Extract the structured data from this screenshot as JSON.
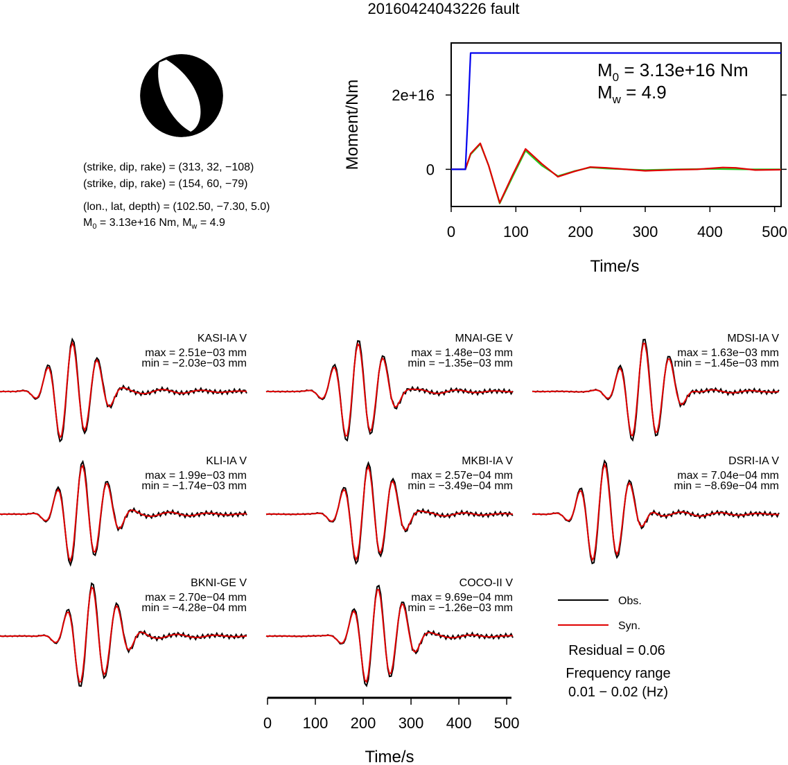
{
  "figure": {
    "title": "20160424043226 fault",
    "mechanism_line1": "(strike, dip, rake) = (313, 32, −108)",
    "mechanism_line2": "(strike, dip, rake) = (154, 60, −79)",
    "location_line": "(lon., lat, depth) = (102.50, −7.30, 5.0)",
    "moment_line_main": "M",
    "moment_line_sub": "0",
    "moment_line_rest": " = 3.13e+16 Nm, M",
    "moment_line_sub2": "w",
    "moment_line_end": " = 4.9"
  },
  "moment_panel": {
    "mo_main": "M",
    "mo_sub": "0",
    "mo_rest": " = 3.13e+16 Nm",
    "mw_main": "M",
    "mw_sub": "w",
    "mw_rest": " = 4.9"
  },
  "legend": {
    "obs_label": "Obs.",
    "syn_label": "Syn.",
    "residual": "Residual = 0.06",
    "freq_label": "Frequency range",
    "freq_value": "0.01 − 0.02 (Hz)"
  },
  "colors": {
    "observed": "#000000",
    "synthetic": "#e00000",
    "moment_rate_green": "#22cc22",
    "cumulative_moment": "#0000ee"
  },
  "chart_data": [
    {
      "type": "line",
      "ylabel": "Moment/Nm",
      "xlabel": "Time/s",
      "xlim": [
        0,
        510
      ],
      "x_ticks": [
        0,
        100,
        200,
        300,
        400,
        500
      ],
      "y_ticks": [
        {
          "value": 0,
          "label": "0"
        },
        {
          "value": 2e+16,
          "label": "2e+16"
        }
      ],
      "ylim": [
        -1e+16,
        3.4e+16
      ],
      "series": [
        {
          "color": "blue",
          "x": [
            0,
            22,
            26,
            30,
            510
          ],
          "y": [
            0,
            0,
            1.5e+16,
            3.13e+16,
            3.13e+16
          ]
        },
        {
          "color": "green",
          "x": [
            0,
            22,
            30,
            45,
            58,
            75,
            95,
            115,
            140,
            165,
            190,
            215,
            240,
            300,
            350,
            400,
            450,
            510
          ],
          "y": [
            0,
            0,
            4000000000000000.0,
            6800000000000000.0,
            1000000000000000.0,
            -9200000000000000.0,
            -2000000000000000.0,
            5000000000000000.0,
            1000000000000000.0,
            -1800000000000000.0,
            -500000000000000.0,
            500000000000000.0,
            200000000000000.0,
            -200000000000000.0,
            0.0,
            100000000000000.0,
            0.0,
            0.0
          ]
        },
        {
          "color": "red",
          "x": [
            0,
            22,
            30,
            45,
            58,
            75,
            95,
            115,
            140,
            165,
            190,
            215,
            240,
            300,
            350,
            380,
            420,
            440,
            470,
            510
          ],
          "y": [
            0,
            0,
            4200000000000000.0,
            7000000000000000.0,
            1000000000000000.0,
            -9000000000000000.0,
            -1500000000000000.0,
            5500000000000000.0,
            1500000000000000.0,
            -2000000000000000.0,
            -600000000000000.0,
            600000000000000.0,
            400000000000000.0,
            -400000000000000.0,
            -100000000000000.0,
            0.0,
            500000000000000.0,
            400000000000000.0,
            -200000000000000.0,
            -100000000000000.0
          ]
        }
      ]
    },
    {
      "type": "line",
      "traces": [
        {
          "station": "KASI-IA V",
          "max": "max = 2.51e−03 mm",
          "min": "min = −2.03e−03 mm"
        },
        {
          "station": "MNAI-GE V",
          "max": "max = 1.48e−03 mm",
          "min": "min = −1.35e−03 mm"
        },
        {
          "station": "MDSI-IA V",
          "max": "max = 1.63e−03 mm",
          "min": "min = −1.45e−03 mm"
        },
        {
          "station": "KLI-IA V",
          "max": "max = 1.99e−03 mm",
          "min": "min = −1.74e−03 mm"
        },
        {
          "station": "MKBI-IA V",
          "max": "max = 2.57e−04 mm",
          "min": "min = −3.49e−04 mm"
        },
        {
          "station": "DSRI-IA V",
          "max": "max = 7.04e−04 mm",
          "min": "min = −8.69e−04 mm"
        },
        {
          "station": "BKNI-GE V",
          "max": "max = 2.70e−04 mm",
          "min": "min = −4.28e−04 mm"
        },
        {
          "station": "COCO-II V",
          "max": "max = 9.69e−04 mm",
          "min": "min = −1.26e−03 mm"
        }
      ],
      "xlabel": "Time/s",
      "xlim": [
        0,
        510
      ],
      "x_ticks": [
        0,
        100,
        200,
        300,
        400,
        500
      ]
    }
  ]
}
